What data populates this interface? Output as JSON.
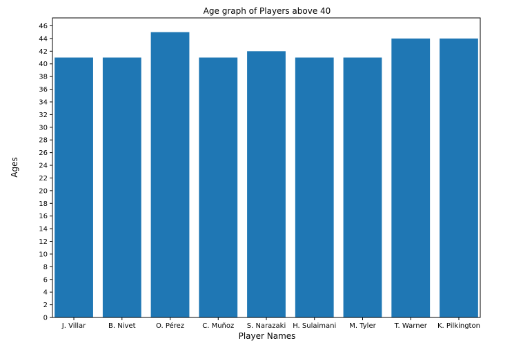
{
  "chart_data": {
    "type": "bar",
    "title": "Age graph of Players above 40",
    "xlabel": "Player Names",
    "ylabel": "Ages",
    "categories": [
      "J. Villar",
      "B. Nivet",
      "O. Pérez",
      "C. Muñoz",
      "S. Narazaki",
      "H. Sulaimani",
      "M. Tyler",
      "T. Warner",
      "K. Pilkington"
    ],
    "values": [
      41,
      41,
      45,
      41,
      42,
      41,
      41,
      44,
      44
    ],
    "ylim": [
      0,
      47.25
    ],
    "yticks": [
      0,
      2,
      4,
      6,
      8,
      10,
      12,
      14,
      16,
      18,
      20,
      22,
      24,
      26,
      28,
      30,
      32,
      34,
      36,
      38,
      40,
      42,
      44,
      46
    ],
    "bar_color": "#1f77b4",
    "grid": false,
    "legend": "none"
  }
}
